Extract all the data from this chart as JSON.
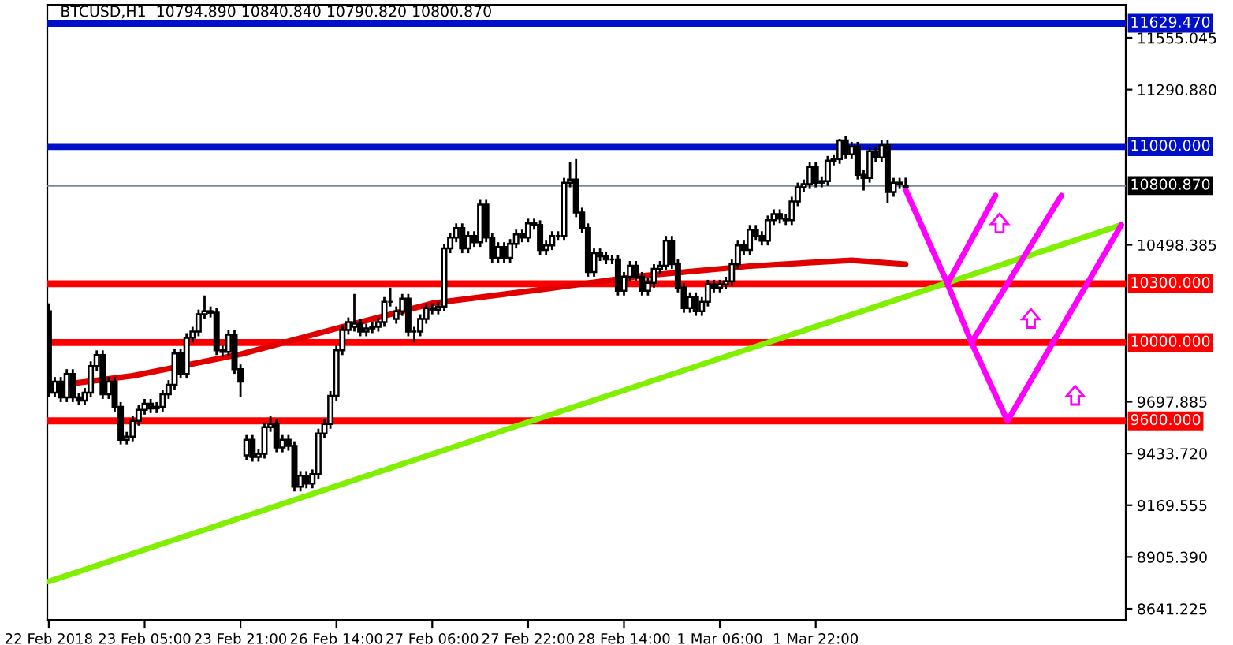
{
  "chart_data": {
    "type": "candlestick",
    "title": "BTCUSD,H1  10794.890 10840.840 10790.820 10800.870",
    "categories": [
      "22 Feb 2018",
      null,
      null,
      null,
      null,
      null,
      null,
      null,
      null,
      null,
      null,
      null,
      null,
      null,
      null,
      null,
      "23 Feb 05:00",
      null,
      null,
      null,
      null,
      null,
      null,
      null,
      null,
      null,
      null,
      null,
      null,
      null,
      null,
      null,
      "23 Feb 21:00",
      null,
      null,
      null,
      null,
      null,
      null,
      null,
      null,
      null,
      null,
      null,
      null,
      null,
      null,
      null,
      "26 Feb 14:00",
      null,
      null,
      null,
      null,
      null,
      null,
      null,
      null,
      null,
      null,
      null,
      null,
      null,
      null,
      null,
      "27 Feb 06:00",
      null,
      null,
      null,
      null,
      null,
      null,
      null,
      null,
      null,
      null,
      null,
      null,
      null,
      null,
      null,
      "27 Feb 22:00",
      null,
      null,
      null,
      null,
      null,
      null,
      null,
      null,
      null,
      null,
      null,
      null,
      null,
      null,
      null,
      "28 Feb 14:00",
      null,
      null,
      null,
      null,
      null,
      null,
      null,
      null,
      null,
      null,
      null,
      null,
      null,
      null,
      null,
      "1 Mar 06:00",
      null,
      null,
      null,
      null,
      null,
      null,
      null,
      null,
      null,
      null,
      null,
      null,
      null,
      null,
      null,
      "1 Mar 22:00",
      null,
      null,
      null,
      null,
      null,
      null,
      null,
      null,
      null,
      null,
      null,
      null,
      null,
      null,
      null,
      null,
      null,
      null,
      null,
      null,
      null,
      null,
      null,
      null,
      null,
      null,
      null,
      null,
      null,
      null,
      null,
      null,
      null,
      null,
      null,
      null,
      null,
      null,
      null,
      null,
      null,
      null,
      null,
      null,
      null,
      null,
      null,
      null,
      null,
      null,
      null
    ],
    "ohlc": [
      [
        10160,
        10200,
        9720,
        9744
      ],
      [
        9744,
        9824,
        9720,
        9800
      ],
      [
        9800,
        9824,
        9696,
        9720
      ],
      [
        9720,
        9864,
        9696,
        9840
      ],
      [
        9840,
        9864,
        9696,
        9720
      ],
      [
        9720,
        9744,
        9680,
        9704
      ],
      [
        9704,
        9768,
        9680,
        9744
      ],
      [
        9744,
        9904,
        9720,
        9880
      ],
      [
        9880,
        9960,
        9856,
        9936
      ],
      [
        9936,
        9960,
        9712,
        9736
      ],
      [
        9736,
        9824,
        9712,
        9800
      ],
      [
        9800,
        9824,
        9648,
        9672
      ],
      [
        9672,
        9696,
        9480,
        9504
      ],
      [
        9504,
        9544,
        9480,
        9520
      ],
      [
        9520,
        9624,
        9496,
        9600
      ],
      [
        9600,
        9680,
        9576,
        9656
      ],
      [
        9656,
        9712,
        9632,
        9688
      ],
      [
        9688,
        9712,
        9640,
        9664
      ],
      [
        9664,
        9696,
        9640,
        9672
      ],
      [
        9672,
        9760,
        9648,
        9736
      ],
      [
        9736,
        9808,
        9712,
        9784
      ],
      [
        9784,
        9968,
        9760,
        9944
      ],
      [
        9944,
        9968,
        9816,
        9840
      ],
      [
        9840,
        10048,
        9816,
        10024
      ],
      [
        10024,
        10080,
        10000,
        10056
      ],
      [
        10056,
        10168,
        10032,
        10144
      ],
      [
        10144,
        10240,
        10120,
        10160
      ],
      [
        10160,
        10184,
        10128,
        10152
      ],
      [
        10152,
        10176,
        9936,
        9960
      ],
      [
        9960,
        9984,
        9928,
        9952
      ],
      [
        9952,
        10064,
        9928,
        10040
      ],
      [
        10040,
        10064,
        9840,
        9864
      ],
      [
        9864,
        9888,
        9720,
        9800
      ],
      [
        9424,
        9528,
        9400,
        9504
      ],
      [
        9504,
        9528,
        9392,
        9416
      ],
      [
        9416,
        9456,
        9392,
        9432
      ],
      [
        9432,
        9592,
        9408,
        9568
      ],
      [
        9568,
        9624,
        9544,
        9584
      ],
      [
        9584,
        9608,
        9440,
        9464
      ],
      [
        9464,
        9528,
        9440,
        9504
      ],
      [
        9504,
        9528,
        9448,
        9472
      ],
      [
        9472,
        9496,
        9240,
        9264
      ],
      [
        9264,
        9344,
        9240,
        9320
      ],
      [
        9320,
        9344,
        9256,
        9280
      ],
      [
        9280,
        9352,
        9256,
        9328
      ],
      [
        9328,
        9560,
        9304,
        9536
      ],
      [
        9536,
        9608,
        9512,
        9584
      ],
      [
        9584,
        9752,
        9560,
        9728
      ],
      [
        9728,
        9984,
        9704,
        9960
      ],
      [
        9960,
        10088,
        9936,
        10064
      ],
      [
        10064,
        10128,
        10040,
        10104
      ],
      [
        10080,
        10248,
        10056,
        10096
      ],
      [
        10096,
        10120,
        10032,
        10056
      ],
      [
        10056,
        10096,
        10032,
        10072
      ],
      [
        10072,
        10104,
        10048,
        10080
      ],
      [
        10080,
        10128,
        10056,
        10104
      ],
      [
        10104,
        10232,
        10080,
        10208
      ],
      [
        10208,
        10280,
        10184,
        10208
      ],
      [
        10120,
        10184,
        10096,
        10160
      ],
      [
        10160,
        10248,
        10136,
        10224
      ],
      [
        10224,
        10248,
        10032,
        10056
      ],
      [
        10056,
        10080,
        10000,
        10056
      ],
      [
        10056,
        10144,
        10032,
        10120
      ],
      [
        10120,
        10200,
        10096,
        10176
      ],
      [
        10176,
        10200,
        10144,
        10168
      ],
      [
        10168,
        10208,
        10144,
        10184
      ],
      [
        10184,
        10504,
        10160,
        10480
      ],
      [
        10480,
        10560,
        10456,
        10536
      ],
      [
        10536,
        10608,
        10512,
        10584
      ],
      [
        10584,
        10608,
        10456,
        10480
      ],
      [
        10480,
        10568,
        10456,
        10544
      ],
      [
        10544,
        10568,
        10488,
        10512
      ],
      [
        10512,
        10728,
        10488,
        10704
      ],
      [
        10704,
        10728,
        10512,
        10536
      ],
      [
        10536,
        10560,
        10408,
        10432
      ],
      [
        10432,
        10512,
        10408,
        10488
      ],
      [
        10488,
        10512,
        10408,
        10432
      ],
      [
        10432,
        10528,
        10408,
        10504
      ],
      [
        10504,
        10576,
        10480,
        10552
      ],
      [
        10552,
        10576,
        10512,
        10536
      ],
      [
        10536,
        10632,
        10512,
        10608
      ],
      [
        10608,
        10632,
        10576,
        10600
      ],
      [
        10600,
        10624,
        10448,
        10472
      ],
      [
        10472,
        10520,
        10448,
        10496
      ],
      [
        10496,
        10568,
        10472,
        10544
      ],
      [
        10544,
        10568,
        10520,
        10544
      ],
      [
        10544,
        10840,
        10520,
        10816
      ],
      [
        10816,
        10920,
        10792,
        10832
      ],
      [
        10832,
        10936,
        10640,
        10664
      ],
      [
        10664,
        10688,
        10560,
        10584
      ],
      [
        10584,
        10608,
        10336,
        10360
      ],
      [
        10360,
        10480,
        10336,
        10456
      ],
      [
        10456,
        10480,
        10416,
        10440
      ],
      [
        10440,
        10464,
        10400,
        10424
      ],
      [
        10424,
        10448,
        10400,
        10424
      ],
      [
        10424,
        10448,
        10240,
        10264
      ],
      [
        10264,
        10360,
        10240,
        10336
      ],
      [
        10336,
        10416,
        10312,
        10392
      ],
      [
        10392,
        10416,
        10312,
        10336
      ],
      [
        10336,
        10360,
        10240,
        10264
      ],
      [
        10264,
        10328,
        10240,
        10304
      ],
      [
        10304,
        10400,
        10280,
        10376
      ],
      [
        10376,
        10416,
        10352,
        10392
      ],
      [
        10392,
        10544,
        10368,
        10520
      ],
      [
        10520,
        10544,
        10376,
        10400
      ],
      [
        10400,
        10424,
        10256,
        10280
      ],
      [
        10280,
        10304,
        10152,
        10176
      ],
      [
        10176,
        10256,
        10152,
        10232
      ],
      [
        10232,
        10256,
        10136,
        10160
      ],
      [
        10160,
        10232,
        10136,
        10208
      ],
      [
        10208,
        10320,
        10184,
        10296
      ],
      [
        10296,
        10320,
        10256,
        10280
      ],
      [
        10280,
        10320,
        10256,
        10296
      ],
      [
        10296,
        10336,
        10272,
        10312
      ],
      [
        10312,
        10424,
        10288,
        10400
      ],
      [
        10400,
        10520,
        10376,
        10496
      ],
      [
        10496,
        10520,
        10448,
        10472
      ],
      [
        10472,
        10600,
        10448,
        10576
      ],
      [
        10576,
        10600,
        10520,
        10544
      ],
      [
        10544,
        10568,
        10496,
        10520
      ],
      [
        10520,
        10648,
        10496,
        10624
      ],
      [
        10624,
        10680,
        10600,
        10656
      ],
      [
        10656,
        10680,
        10608,
        10632
      ],
      [
        10632,
        10656,
        10600,
        10624
      ],
      [
        10624,
        10744,
        10600,
        10720
      ],
      [
        10720,
        10816,
        10696,
        10792
      ],
      [
        10792,
        10832,
        10768,
        10808
      ],
      [
        10808,
        10920,
        10784,
        10896
      ],
      [
        10896,
        10920,
        10792,
        10816
      ],
      [
        10816,
        10848,
        10792,
        10824
      ],
      [
        10824,
        10952,
        10800,
        10928
      ],
      [
        10928,
        10960,
        10904,
        10936
      ],
      [
        10936,
        11040,
        10912,
        11032
      ],
      [
        11032,
        11056,
        10936,
        10960
      ],
      [
        10960,
        11024,
        10936,
        11000
      ],
      [
        11000,
        11024,
        10832,
        10856
      ],
      [
        10856,
        10880,
        10776,
        10840
      ],
      [
        10840,
        11000,
        10816,
        10976
      ],
      [
        10976,
        11000,
        10920,
        10944
      ],
      [
        10944,
        11032,
        10920,
        11008
      ],
      [
        11008,
        11032,
        10712,
        10768
      ],
      [
        10768,
        10840,
        10744,
        10816
      ],
      [
        10816,
        10840,
        10784,
        10808
      ],
      [
        10794.89,
        10840.84,
        10790.82,
        10800.87
      ],
      null,
      null,
      null,
      null,
      null,
      null,
      null,
      null,
      null,
      null,
      null,
      null,
      null,
      null,
      null,
      null,
      null,
      null,
      null,
      null,
      null,
      null,
      null,
      null,
      null,
      null,
      null,
      null,
      null,
      null,
      null,
      null,
      null,
      null,
      null,
      null
    ],
    "series": [
      {
        "type": "line",
        "color": "#e00000",
        "values": [
          null,
          9780,
          null,
          null,
          null,
          null,
          null,
          null,
          null,
          null,
          null,
          null,
          null,
          null,
          9830,
          null,
          null,
          null,
          null,
          null,
          null,
          null,
          null,
          null,
          null,
          null,
          null,
          null,
          null,
          null,
          null,
          null,
          9940,
          null,
          null,
          null,
          null,
          null,
          null,
          null,
          null,
          null,
          null,
          null,
          null,
          null,
          null,
          null,
          null,
          10080,
          null,
          null,
          null,
          null,
          null,
          null,
          null,
          null,
          null,
          null,
          null,
          null,
          null,
          null,
          10200,
          null,
          null,
          null,
          null,
          null,
          null,
          null,
          null,
          null,
          null,
          null,
          null,
          null,
          null,
          null,
          null,
          null,
          10270,
          null,
          null,
          null,
          null,
          null,
          null,
          null,
          null,
          null,
          null,
          null,
          null,
          null,
          null,
          null,
          null,
          10340,
          null,
          null,
          null,
          null,
          null,
          null,
          null,
          null,
          null,
          null,
          null,
          null,
          null,
          null,
          null,
          null,
          null,
          10390,
          null,
          null,
          null,
          null,
          null,
          null,
          null,
          null,
          null,
          null,
          null,
          null,
          null,
          null,
          null,
          null,
          10420,
          null,
          null,
          null,
          null,
          null,
          null,
          null,
          null,
          10400,
          null,
          null,
          null,
          null,
          null,
          null,
          null,
          null,
          null,
          null,
          null,
          null,
          null,
          null,
          null,
          null,
          null,
          null,
          null,
          null,
          null,
          null,
          null,
          null,
          null,
          null,
          null,
          null,
          null,
          null,
          null,
          null,
          null,
          null,
          null,
          null
        ]
      },
      {
        "type": "line",
        "color": "#80f000",
        "values": [
          8780,
          null,
          null,
          null,
          null,
          null,
          null,
          null,
          null,
          null,
          null,
          null,
          null,
          null,
          null,
          null,
          null,
          null,
          null,
          null,
          null,
          null,
          null,
          null,
          null,
          null,
          null,
          null,
          null,
          null,
          null,
          null,
          null,
          null,
          null,
          null,
          null,
          null,
          null,
          null,
          null,
          null,
          null,
          null,
          null,
          null,
          null,
          null,
          null,
          null,
          null,
          null,
          null,
          null,
          null,
          null,
          null,
          null,
          null,
          null,
          null,
          null,
          null,
          null,
          null,
          null,
          null,
          null,
          null,
          null,
          null,
          null,
          null,
          null,
          null,
          null,
          null,
          null,
          null,
          null,
          null,
          null,
          null,
          null,
          null,
          null,
          null,
          null,
          null,
          null,
          null,
          null,
          null,
          null,
          null,
          null,
          null,
          null,
          null,
          null,
          null,
          null,
          null,
          null,
          null,
          null,
          null,
          null,
          null,
          null,
          null,
          null,
          null,
          null,
          null,
          null,
          null,
          null,
          null,
          null,
          null,
          null,
          null,
          null,
          null,
          null,
          null,
          null,
          null,
          null,
          null,
          null,
          null,
          null,
          null,
          null,
          null,
          null,
          null,
          null,
          null,
          null,
          null,
          null,
          null,
          null,
          null,
          null,
          null,
          null,
          null,
          null,
          null,
          null,
          null,
          null,
          null,
          null,
          null,
          null,
          null,
          null,
          null,
          null,
          null,
          null,
          null,
          null,
          null,
          null,
          null,
          null,
          null,
          null,
          null,
          null,
          null,
          null,
          null,
          10600
        ]
      },
      {
        "type": "line",
        "color": "#ff00ff",
        "values": [
          null,
          null,
          null,
          null,
          null,
          null,
          null,
          null,
          null,
          null,
          null,
          null,
          null,
          null,
          null,
          null,
          null,
          null,
          null,
          null,
          null,
          null,
          null,
          null,
          null,
          null,
          null,
          null,
          null,
          null,
          null,
          null,
          null,
          null,
          null,
          null,
          null,
          null,
          null,
          null,
          null,
          null,
          null,
          null,
          null,
          null,
          null,
          null,
          null,
          null,
          null,
          null,
          null,
          null,
          null,
          null,
          null,
          null,
          null,
          null,
          null,
          null,
          null,
          null,
          null,
          null,
          null,
          null,
          null,
          null,
          null,
          null,
          null,
          null,
          null,
          null,
          null,
          null,
          null,
          null,
          null,
          null,
          null,
          null,
          null,
          null,
          null,
          null,
          null,
          null,
          null,
          null,
          null,
          null,
          null,
          null,
          null,
          null,
          null,
          null,
          null,
          null,
          null,
          null,
          null,
          null,
          null,
          null,
          null,
          null,
          null,
          null,
          null,
          null,
          null,
          null,
          null,
          null,
          null,
          null,
          null,
          null,
          null,
          null,
          null,
          null,
          null,
          null,
          null,
          null,
          null,
          null,
          null,
          null,
          null,
          null,
          null,
          null,
          null,
          null,
          null,
          null,
          null,
          10780,
          null,
          null,
          null,
          null,
          null,
          null,
          10300,
          null,
          null,
          null,
          null,
          null,
          null,
          null,
          10750,
          null,
          null,
          null,
          null,
          null,
          null,
          null,
          null,
          null,
          null,
          null,
          null,
          null,
          null,
          null,
          null,
          null,
          null,
          null,
          null,
          null
        ]
      },
      {
        "type": "line",
        "color": "#ff00ff",
        "values": [
          null,
          null,
          null,
          null,
          null,
          null,
          null,
          null,
          null,
          null,
          null,
          null,
          null,
          null,
          null,
          null,
          null,
          null,
          null,
          null,
          null,
          null,
          null,
          null,
          null,
          null,
          null,
          null,
          null,
          null,
          null,
          null,
          null,
          null,
          null,
          null,
          null,
          null,
          null,
          null,
          null,
          null,
          null,
          null,
          null,
          null,
          null,
          null,
          null,
          null,
          null,
          null,
          null,
          null,
          null,
          null,
          null,
          null,
          null,
          null,
          null,
          null,
          null,
          null,
          null,
          null,
          null,
          null,
          null,
          null,
          null,
          null,
          null,
          null,
          null,
          null,
          null,
          null,
          null,
          null,
          null,
          null,
          null,
          null,
          null,
          null,
          null,
          null,
          null,
          null,
          null,
          null,
          null,
          null,
          null,
          null,
          null,
          null,
          null,
          null,
          null,
          null,
          null,
          null,
          null,
          null,
          null,
          null,
          null,
          null,
          null,
          null,
          null,
          null,
          null,
          null,
          null,
          null,
          null,
          null,
          null,
          null,
          null,
          null,
          null,
          null,
          null,
          null,
          null,
          null,
          null,
          null,
          null,
          null,
          null,
          null,
          null,
          null,
          null,
          null,
          null,
          null,
          null,
          null,
          null,
          null,
          null,
          null,
          null,
          null,
          10300,
          null,
          null,
          null,
          10000,
          null,
          null,
          null,
          null,
          null,
          null,
          null,
          null,
          null,
          null,
          null,
          null,
          null,
          null,
          10750,
          null,
          null,
          null,
          null,
          null,
          null,
          null,
          null,
          null,
          null
        ]
      },
      {
        "type": "line",
        "color": "#ff00ff",
        "values": [
          null,
          null,
          null,
          null,
          null,
          null,
          null,
          null,
          null,
          null,
          null,
          null,
          null,
          null,
          null,
          null,
          null,
          null,
          null,
          null,
          null,
          null,
          null,
          null,
          null,
          null,
          null,
          null,
          null,
          null,
          null,
          null,
          null,
          null,
          null,
          null,
          null,
          null,
          null,
          null,
          null,
          null,
          null,
          null,
          null,
          null,
          null,
          null,
          null,
          null,
          null,
          null,
          null,
          null,
          null,
          null,
          null,
          null,
          null,
          null,
          null,
          null,
          null,
          null,
          null,
          null,
          null,
          null,
          null,
          null,
          null,
          null,
          null,
          null,
          null,
          null,
          null,
          null,
          null,
          null,
          null,
          null,
          null,
          null,
          null,
          null,
          null,
          null,
          null,
          null,
          null,
          null,
          null,
          null,
          null,
          null,
          null,
          null,
          null,
          null,
          null,
          null,
          null,
          null,
          null,
          null,
          null,
          null,
          null,
          null,
          null,
          null,
          null,
          null,
          null,
          null,
          null,
          null,
          null,
          null,
          null,
          null,
          null,
          null,
          null,
          null,
          null,
          null,
          null,
          null,
          null,
          null,
          null,
          null,
          null,
          null,
          null,
          null,
          null,
          null,
          null,
          null,
          null,
          null,
          null,
          null,
          null,
          null,
          null,
          null,
          null,
          null,
          null,
          null,
          10000,
          null,
          null,
          null,
          null,
          null,
          9600,
          null,
          null,
          null,
          null,
          null,
          null,
          null,
          null,
          null,
          null,
          null,
          null,
          null,
          null,
          null,
          null,
          null,
          null,
          10600
        ]
      }
    ],
    "ref_lines": [
      {
        "axis": "y",
        "value": 11629.47,
        "label": "11629.470",
        "color": "#0010c8"
      },
      {
        "axis": "y",
        "value": 11000,
        "label": "11000.000",
        "color": "#0010c8"
      },
      {
        "axis": "y",
        "value": 10800.87,
        "label": "10800.870",
        "color": "#778899"
      },
      {
        "axis": "y",
        "value": 10300,
        "label": "10300.000",
        "color": "#ff0000"
      },
      {
        "axis": "y",
        "value": 10000,
        "label": "10000.000",
        "color": "#ff0000"
      },
      {
        "axis": "y",
        "value": 9600,
        "label": "9600.000",
        "color": "#ff0000"
      }
    ],
    "ylim": [
      8585,
      11724
    ],
    "yticks": [
      11555.045,
      {
        "value": 11290.88,
        "label": "11290.880"
      },
      10498.385,
      9697.885,
      {
        "value": 9433.72,
        "label": "9433.720"
      },
      9169.555,
      {
        "value": 8905.39,
        "label": "8905.390"
      },
      8641.225
    ],
    "grid": false,
    "legend": false
  }
}
